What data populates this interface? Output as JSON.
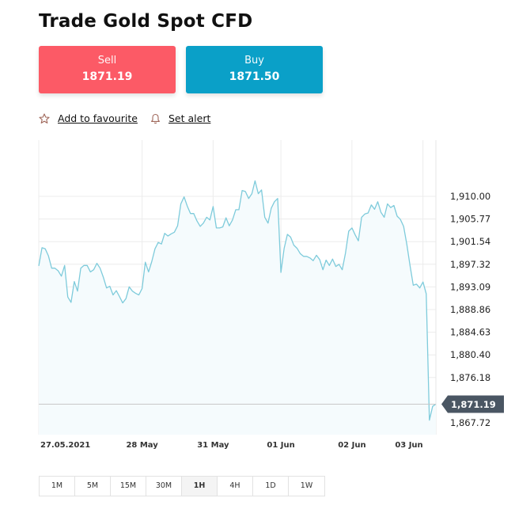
{
  "page": {
    "title": "Trade Gold Spot CFD"
  },
  "sell": {
    "label": "Sell",
    "price": "1871.19",
    "color": "#fc5a66"
  },
  "buy": {
    "label": "Buy",
    "price": "1871.50",
    "color": "#0aa0c8"
  },
  "actions": {
    "favourite": "Add to favourite",
    "alert": "Set alert"
  },
  "timeframes": [
    "1M",
    "5M",
    "15M",
    "30M",
    "1H",
    "4H",
    "1D",
    "1W"
  ],
  "active_timeframe": "1H",
  "chart_data": {
    "type": "area",
    "current_price": "1,871.19",
    "y_ticks": [
      "1,910.00",
      "1,905.77",
      "1,901.54",
      "1,897.32",
      "1,893.09",
      "1,888.86",
      "1,884.63",
      "1,880.40",
      "1,876.18",
      "1,867.72"
    ],
    "y_tick_values": [
      1910.0,
      1905.77,
      1901.54,
      1897.32,
      1893.09,
      1888.86,
      1884.63,
      1880.4,
      1876.18,
      1867.72
    ],
    "x_ticks": [
      "27.05.2021",
      "28 May",
      "31 May",
      "01 Jun",
      "02 Jun",
      "03 Jun"
    ],
    "x_tick_index": [
      0,
      32,
      54,
      75,
      97,
      119
    ],
    "ylim": [
      1865.5,
      1920.5
    ],
    "grid": true,
    "line_color": "#7ecbdb",
    "values": [
      1897.0,
      1900.4,
      1900.2,
      1898.9,
      1896.6,
      1896.6,
      1896.1,
      1895.1,
      1897.1,
      1891.2,
      1890.2,
      1894.1,
      1892.3,
      1896.6,
      1897.1,
      1897.1,
      1895.9,
      1896.3,
      1897.5,
      1896.6,
      1894.9,
      1892.9,
      1893.2,
      1891.6,
      1892.4,
      1891.3,
      1890.1,
      1890.9,
      1893.1,
      1892.3,
      1891.9,
      1891.6,
      1892.8,
      1897.7,
      1895.9,
      1897.8,
      1900.2,
      1901.4,
      1901.1,
      1903.1,
      1902.6,
      1903.0,
      1903.3,
      1904.5,
      1908.6,
      1909.9,
      1908.2,
      1906.8,
      1906.8,
      1905.4,
      1904.4,
      1905.0,
      1906.1,
      1905.6,
      1908.1,
      1904.1,
      1904.1,
      1904.3,
      1906.0,
      1904.5,
      1905.6,
      1907.5,
      1907.5,
      1911.1,
      1910.9,
      1909.6,
      1910.5,
      1912.9,
      1910.5,
      1911.2,
      1906.1,
      1905.0,
      1907.8,
      1909.0,
      1909.6,
      1895.8,
      1900.3,
      1902.9,
      1902.4,
      1900.9,
      1900.3,
      1899.3,
      1898.8,
      1898.8,
      1898.5,
      1898.0,
      1899.0,
      1898.2,
      1896.3,
      1898.1,
      1897.1,
      1898.3,
      1896.9,
      1897.3,
      1896.3,
      1899.4,
      1903.5,
      1904.1,
      1902.8,
      1901.7,
      1906.1,
      1906.7,
      1906.9,
      1908.4,
      1907.6,
      1909.0,
      1907.0,
      1906.1,
      1908.6,
      1907.9,
      1908.3,
      1906.3,
      1905.7,
      1904.4,
      1901.0,
      1897.1,
      1893.4,
      1893.6,
      1892.9,
      1894.0,
      1891.8,
      1868.2,
      1870.8,
      1871.2
    ]
  }
}
